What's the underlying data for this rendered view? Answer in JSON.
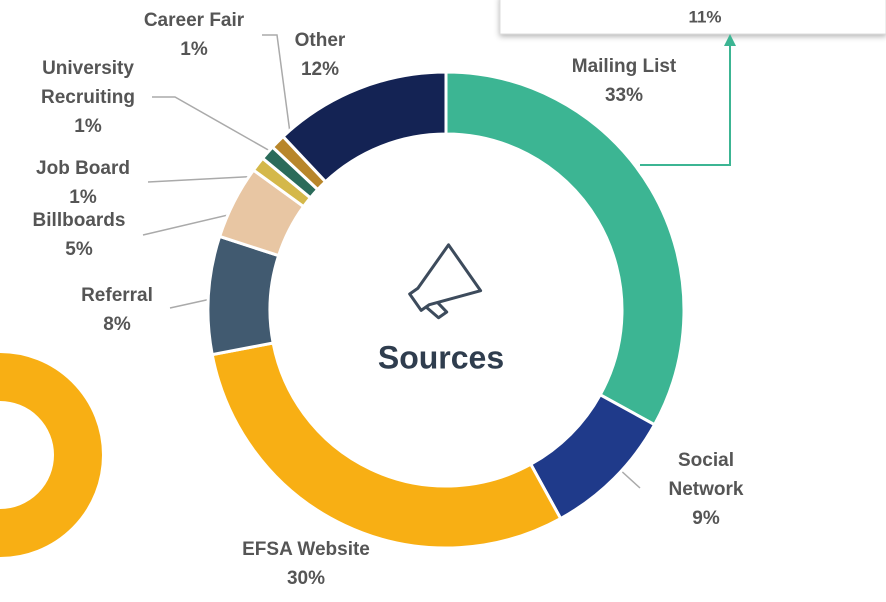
{
  "chart_data": {
    "type": "pie",
    "center_label": "Sources",
    "annotation": "11%",
    "categories": [
      "Mailing List",
      "Social Network",
      "EFSA Website",
      "Referral",
      "Billboards",
      "Job Board",
      "University Recruiting",
      "Career Fair",
      "Other"
    ],
    "values": [
      33,
      9,
      30,
      8,
      5,
      1,
      1,
      1,
      12
    ],
    "value_labels": [
      "33%",
      "9%",
      "30%",
      "8%",
      "5%",
      "1%",
      "1%",
      "1%",
      "12%"
    ],
    "colors": [
      "#3cb593",
      "#1f3a8a",
      "#f8af14",
      "#415a70",
      "#e8c6a3",
      "#d4b84a",
      "#2a6b5a",
      "#b8862a",
      "#142354"
    ]
  }
}
